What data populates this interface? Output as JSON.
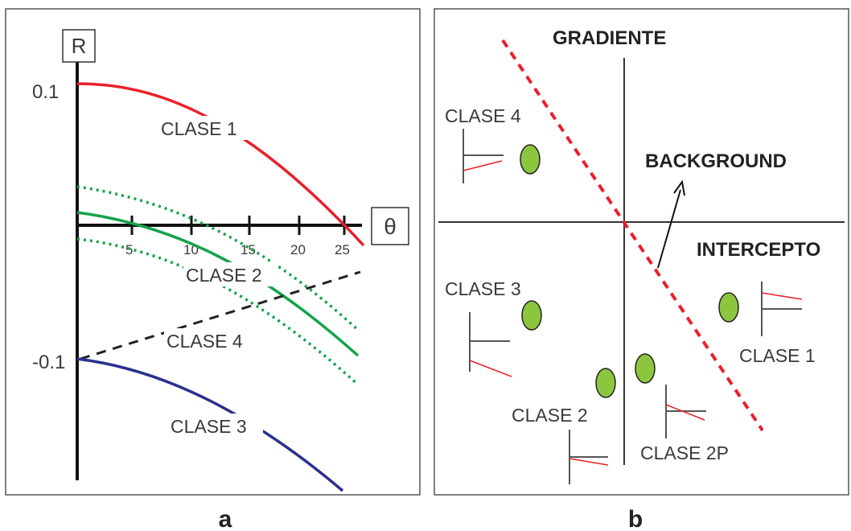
{
  "panel_a": {
    "caption": "a",
    "y_axis_label": "R",
    "x_axis_label": "θ",
    "y_tick_top": "0.1",
    "y_tick_bottom": "-0.1",
    "x_ticks": [
      "5",
      "10",
      "15",
      "20",
      "25"
    ],
    "curves": [
      {
        "label": "CLASE 1",
        "color": "#e8202a",
        "style": "solid"
      },
      {
        "label": "CLASE 2",
        "color": "#16a34a",
        "style": "solid with dotted bounds"
      },
      {
        "label": "CLASE 4",
        "color": "#222222",
        "style": "dashed"
      },
      {
        "label": "CLASE 3",
        "color": "#2b2f8f",
        "style": "solid"
      }
    ]
  },
  "panel_b": {
    "caption": "b",
    "axis_vertical_label": "GRADIENTE",
    "axis_horizontal_label": "INTERCEPTO",
    "trend_label": "BACKGROUND",
    "class_labels": {
      "c1": "CLASE 1",
      "c2": "CLASE 2",
      "c2p": "CLASE 2P",
      "c3": "CLASE 3",
      "c4": "CLASE 4"
    },
    "colors": {
      "marker_fill": "#8cc63f",
      "trend_line": "#e8202a"
    }
  }
}
